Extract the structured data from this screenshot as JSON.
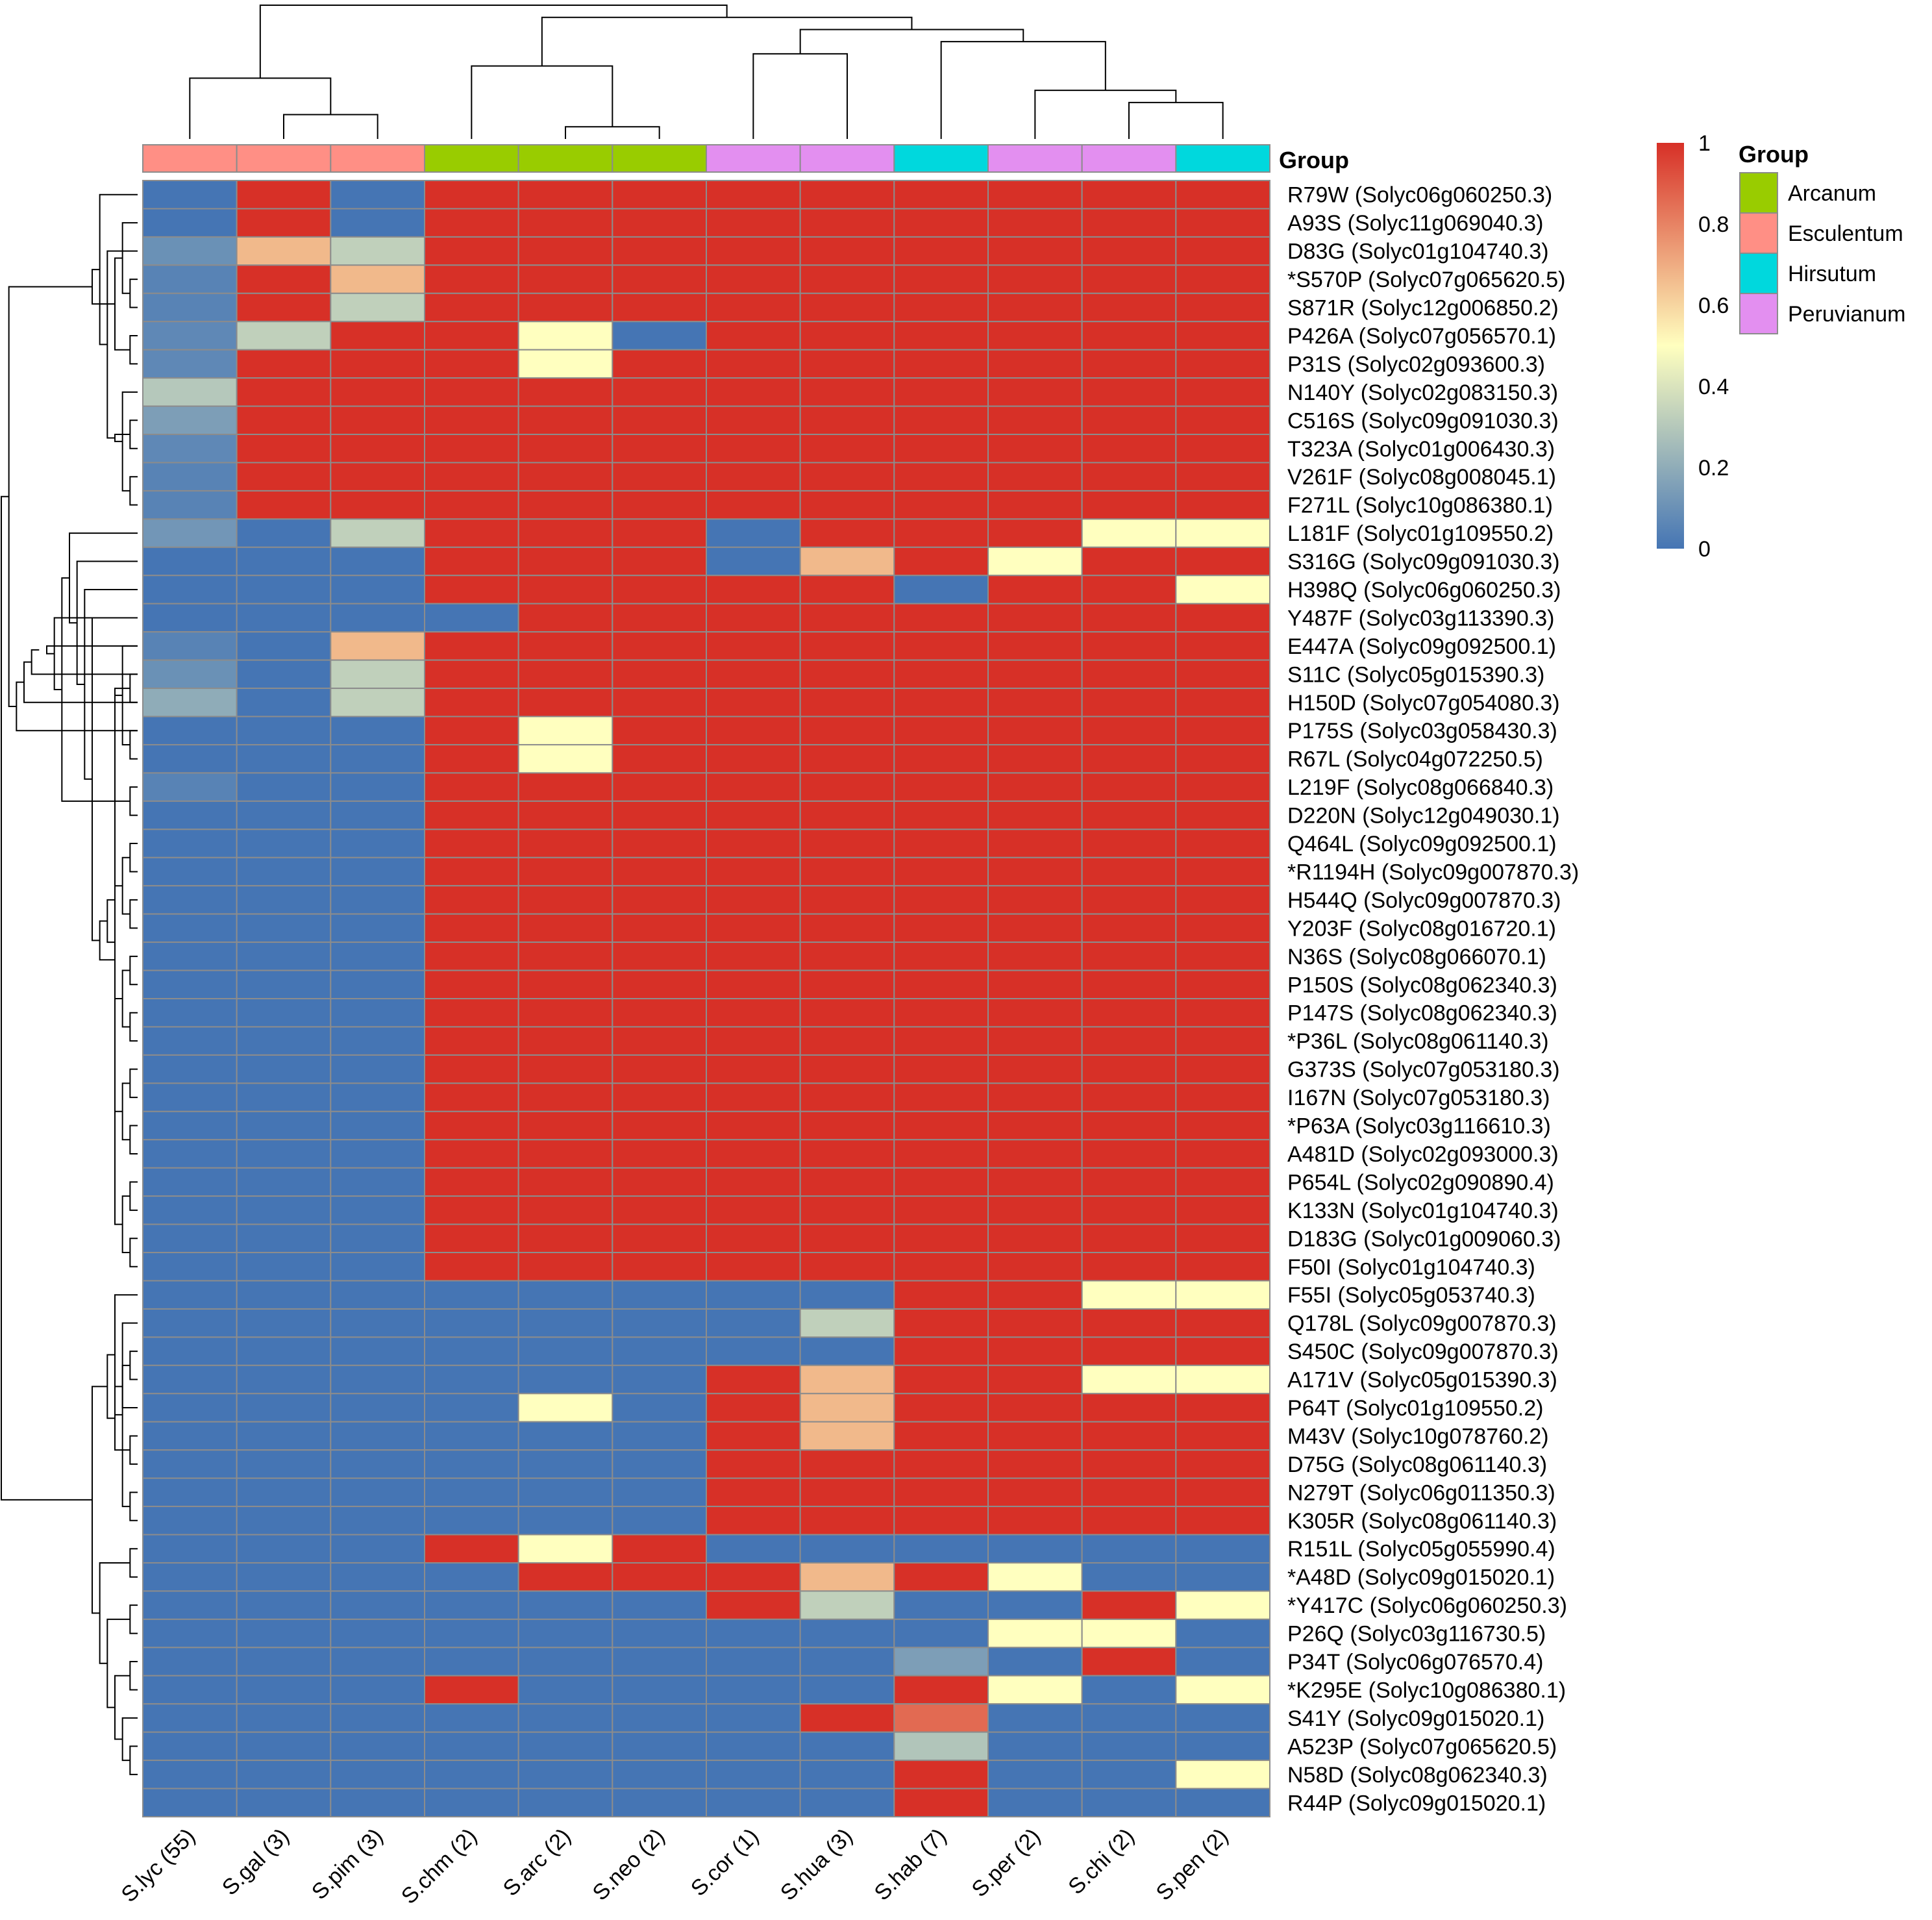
{
  "chart_data": {
    "type": "heatmap",
    "title": "",
    "columns": [
      "S.lyc (55)",
      "S.gal (3)",
      "S.pim (3)",
      "S.chm (2)",
      "S.arc (2)",
      "S.neo (2)",
      "S.cor (1)",
      "S.hua (3)",
      "S.hab (7)",
      "S.per (2)",
      "S.chi (2)",
      "S.pen (2)"
    ],
    "column_groups": [
      "Esculentum",
      "Esculentum",
      "Esculentum",
      "Arcanum",
      "Arcanum",
      "Arcanum",
      "Peruvianum",
      "Peruvianum",
      "Hirsutum",
      "Peruvianum",
      "Peruvianum",
      "Hirsutum"
    ],
    "rows": [
      "R79W (Solyc06g060250.3)",
      "A93S (Solyc11g069040.3)",
      "D83G (Solyc01g104740.3)",
      "*S570P (Solyc07g065620.5)",
      "S871R (Solyc12g006850.2)",
      "P426A (Solyc07g056570.1)",
      "P31S (Solyc02g093600.3)",
      "N140Y (Solyc02g083150.3)",
      "C516S (Solyc09g091030.3)",
      "T323A (Solyc01g006430.3)",
      "V261F (Solyc08g008045.1)",
      "F271L (Solyc10g086380.1)",
      "L181F (Solyc01g109550.2)",
      "S316G (Solyc09g091030.3)",
      "H398Q (Solyc06g060250.3)",
      "Y487F (Solyc03g113390.3)",
      "E447A (Solyc09g092500.1)",
      "S11C (Solyc05g015390.3)",
      "H150D (Solyc07g054080.3)",
      "P175S (Solyc03g058430.3)",
      "R67L (Solyc04g072250.5)",
      "L219F (Solyc08g066840.3)",
      "D220N (Solyc12g049030.1)",
      "Q464L (Solyc09g092500.1)",
      "*R1194H (Solyc09g007870.3)",
      "H544Q (Solyc09g007870.3)",
      "Y203F (Solyc08g016720.1)",
      "N36S (Solyc08g066070.1)",
      "P150S (Solyc08g062340.3)",
      "P147S (Solyc08g062340.3)",
      "*P36L (Solyc08g061140.3)",
      "G373S (Solyc07g053180.3)",
      "I167N (Solyc07g053180.3)",
      "*P63A (Solyc03g116610.3)",
      "A481D (Solyc02g093000.3)",
      "P654L (Solyc02g090890.4)",
      "K133N (Solyc01g104740.3)",
      "D183G (Solyc01g009060.3)",
      "F50I (Solyc01g104740.3)",
      "F55I (Solyc05g053740.3)",
      "Q178L (Solyc09g007870.3)",
      "S450C (Solyc09g007870.3)",
      "A171V (Solyc05g015390.3)",
      "P64T (Solyc01g109550.2)",
      "M43V (Solyc10g078760.2)",
      "D75G (Solyc08g061140.3)",
      "N279T (Solyc06g011350.3)",
      "K305R (Solyc08g061140.3)",
      "R151L (Solyc05g055990.4)",
      "*A48D (Solyc09g015020.1)",
      "*Y417C (Solyc06g060250.3)",
      "P26Q (Solyc03g116730.5)",
      "P34T (Solyc06g076570.4)",
      "*K295E (Solyc10g086380.1)",
      "S41Y (Solyc09g015020.1)",
      "A523P (Solyc07g065620.5)",
      "N58D (Solyc08g062340.3)",
      "R44P (Solyc09g015020.1)"
    ],
    "values": [
      [
        0,
        1,
        0,
        1,
        1,
        1,
        1,
        1,
        1,
        1,
        1,
        1
      ],
      [
        0,
        1,
        0,
        1,
        1,
        1,
        1,
        1,
        1,
        1,
        1,
        1
      ],
      [
        0.1,
        0.67,
        0.33,
        1,
        1,
        1,
        1,
        1,
        1,
        1,
        1,
        1
      ],
      [
        0.05,
        1,
        0.67,
        1,
        1,
        1,
        1,
        1,
        1,
        1,
        1,
        1
      ],
      [
        0.05,
        1,
        0.33,
        1,
        1,
        1,
        1,
        1,
        1,
        1,
        1,
        1
      ],
      [
        0.07,
        0.33,
        1,
        1,
        0.5,
        0,
        1,
        1,
        1,
        1,
        1,
        1
      ],
      [
        0.07,
        1,
        1,
        1,
        0.5,
        1,
        1,
        1,
        1,
        1,
        1,
        1
      ],
      [
        0.3,
        1,
        1,
        1,
        1,
        1,
        1,
        1,
        1,
        1,
        1,
        1
      ],
      [
        0.15,
        1,
        1,
        1,
        1,
        1,
        1,
        1,
        1,
        1,
        1,
        1
      ],
      [
        0.07,
        1,
        1,
        1,
        1,
        1,
        1,
        1,
        1,
        1,
        1,
        1
      ],
      [
        0.05,
        1,
        1,
        1,
        1,
        1,
        1,
        1,
        1,
        1,
        1,
        1
      ],
      [
        0.05,
        1,
        1,
        1,
        1,
        1,
        1,
        1,
        1,
        1,
        1,
        1
      ],
      [
        0.12,
        0,
        0.33,
        1,
        1,
        1,
        0,
        1,
        1,
        1,
        0.5,
        0.5
      ],
      [
        0,
        0,
        0,
        1,
        1,
        1,
        0,
        0.67,
        1,
        0.5,
        1,
        1
      ],
      [
        0,
        0,
        0,
        1,
        1,
        1,
        1,
        1,
        0,
        1,
        1,
        0.5
      ],
      [
        0,
        0,
        0,
        0,
        1,
        1,
        1,
        1,
        1,
        1,
        1,
        1
      ],
      [
        0.05,
        0,
        0.67,
        1,
        1,
        1,
        1,
        1,
        1,
        1,
        1,
        1
      ],
      [
        0.1,
        0,
        0.33,
        1,
        1,
        1,
        1,
        1,
        1,
        1,
        1,
        1
      ],
      [
        0.2,
        0,
        0.33,
        1,
        1,
        1,
        1,
        1,
        1,
        1,
        1,
        1
      ],
      [
        0,
        0,
        0,
        1,
        0.5,
        1,
        1,
        1,
        1,
        1,
        1,
        1
      ],
      [
        0,
        0,
        0,
        1,
        0.5,
        1,
        1,
        1,
        1,
        1,
        1,
        1
      ],
      [
        0.05,
        0,
        0,
        1,
        1,
        1,
        1,
        1,
        1,
        1,
        1,
        1
      ],
      [
        0,
        0,
        0,
        1,
        1,
        1,
        1,
        1,
        1,
        1,
        1,
        1
      ],
      [
        0,
        0,
        0,
        1,
        1,
        1,
        1,
        1,
        1,
        1,
        1,
        1
      ],
      [
        0,
        0,
        0,
        1,
        1,
        1,
        1,
        1,
        1,
        1,
        1,
        1
      ],
      [
        0,
        0,
        0,
        1,
        1,
        1,
        1,
        1,
        1,
        1,
        1,
        1
      ],
      [
        0,
        0,
        0,
        1,
        1,
        1,
        1,
        1,
        1,
        1,
        1,
        1
      ],
      [
        0,
        0,
        0,
        1,
        1,
        1,
        1,
        1,
        1,
        1,
        1,
        1
      ],
      [
        0,
        0,
        0,
        1,
        1,
        1,
        1,
        1,
        1,
        1,
        1,
        1
      ],
      [
        0,
        0,
        0,
        1,
        1,
        1,
        1,
        1,
        1,
        1,
        1,
        1
      ],
      [
        0,
        0,
        0,
        1,
        1,
        1,
        1,
        1,
        1,
        1,
        1,
        1
      ],
      [
        0,
        0,
        0,
        1,
        1,
        1,
        1,
        1,
        1,
        1,
        1,
        1
      ],
      [
        0,
        0,
        0,
        1,
        1,
        1,
        1,
        1,
        1,
        1,
        1,
        1
      ],
      [
        0,
        0,
        0,
        1,
        1,
        1,
        1,
        1,
        1,
        1,
        1,
        1
      ],
      [
        0,
        0,
        0,
        1,
        1,
        1,
        1,
        1,
        1,
        1,
        1,
        1
      ],
      [
        0,
        0,
        0,
        1,
        1,
        1,
        1,
        1,
        1,
        1,
        1,
        1
      ],
      [
        0,
        0,
        0,
        1,
        1,
        1,
        1,
        1,
        1,
        1,
        1,
        1
      ],
      [
        0,
        0,
        0,
        1,
        1,
        1,
        1,
        1,
        1,
        1,
        1,
        1
      ],
      [
        0,
        0,
        0,
        1,
        1,
        1,
        1,
        1,
        1,
        1,
        1,
        1
      ],
      [
        0,
        0,
        0,
        0,
        0,
        0,
        0,
        0,
        1,
        1,
        0.5,
        0.5
      ],
      [
        0,
        0,
        0,
        0,
        0,
        0,
        0,
        0.33,
        1,
        1,
        1,
        1
      ],
      [
        0,
        0,
        0,
        0,
        0,
        0,
        0,
        0,
        1,
        1,
        1,
        1
      ],
      [
        0,
        0,
        0,
        0,
        0,
        0,
        1,
        0.67,
        1,
        1,
        0.5,
        0.5
      ],
      [
        0,
        0,
        0,
        0,
        0.5,
        0,
        1,
        0.67,
        1,
        1,
        1,
        1
      ],
      [
        0,
        0,
        0,
        0,
        0,
        0,
        1,
        0.67,
        1,
        1,
        1,
        1
      ],
      [
        0,
        0,
        0,
        0,
        0,
        0,
        1,
        1,
        1,
        1,
        1,
        1
      ],
      [
        0,
        0,
        0,
        0,
        0,
        0,
        1,
        1,
        1,
        1,
        1,
        1
      ],
      [
        0,
        0,
        0,
        0,
        0,
        0,
        1,
        1,
        1,
        1,
        1,
        1
      ],
      [
        0,
        0,
        0,
        1,
        0.5,
        1,
        0,
        0,
        0,
        0,
        0,
        0
      ],
      [
        0,
        0,
        0,
        0,
        1,
        1,
        1,
        0.67,
        1,
        0.5,
        0,
        0
      ],
      [
        0,
        0,
        0,
        0,
        0,
        0,
        1,
        0.33,
        0,
        0,
        1,
        0.5
      ],
      [
        0,
        0,
        0,
        0,
        0,
        0,
        0,
        0,
        0,
        0.5,
        0.5,
        0
      ],
      [
        0,
        0,
        0,
        0,
        0,
        0,
        0,
        0,
        0.15,
        0,
        1,
        0
      ],
      [
        0,
        0,
        0,
        1,
        0,
        0,
        0,
        0,
        1,
        0.5,
        0,
        0.5
      ],
      [
        0,
        0,
        0,
        0,
        0,
        0,
        0,
        1,
        0.86,
        0,
        0,
        0
      ],
      [
        0,
        0,
        0,
        0,
        0,
        0,
        0,
        0,
        0.29,
        0,
        0,
        0
      ],
      [
        0,
        0,
        0,
        0,
        0,
        0,
        0,
        0,
        1,
        0,
        0,
        0.5
      ],
      [
        0,
        0,
        0,
        0,
        0,
        0,
        0,
        0,
        1,
        0,
        0,
        0
      ]
    ],
    "color_scale": {
      "min": 0,
      "max": 1,
      "stops": [
        {
          "value": 0,
          "color": "#4575b4"
        },
        {
          "value": 0.5,
          "color": "#ffffbf"
        },
        {
          "value": 1,
          "color": "#d73027"
        }
      ],
      "ticks": [
        "0",
        "0.2",
        "0.4",
        "0.6",
        "0.8",
        "1"
      ]
    },
    "annotation": {
      "title": "Group",
      "entries": [
        {
          "name": "Arcanum",
          "color": "#99cc00"
        },
        {
          "name": "Esculentum",
          "color": "#ff8f85"
        },
        {
          "name": "Hirsutum",
          "color": "#00d8dd"
        },
        {
          "name": "Peruvianum",
          "color": "#e38ff0"
        }
      ]
    },
    "column_dendrogram": [
      [
        4,
        5
      ],
      [
        1,
        2
      ],
      [
        10,
        11
      ],
      [
        9,
        -3
      ],
      [
        0,
        -2
      ],
      [
        3,
        -1
      ],
      [
        6,
        7
      ],
      [
        8,
        -4
      ],
      [
        -7,
        -8
      ],
      [
        -6,
        -9
      ],
      [
        -5,
        -10
      ]
    ],
    "row_dendrogram": [
      [
        3,
        4
      ],
      [
        8,
        9
      ],
      [
        10,
        11
      ],
      [
        -3,
        7
      ],
      [
        -4,
        -2
      ],
      [
        5,
        6
      ],
      [
        2,
        -5
      ],
      [
        -1,
        1
      ],
      [
        -8,
        -6
      ],
      [
        0,
        -7
      ],
      [
        -10,
        -9
      ],
      [
        21,
        22
      ],
      [
        23,
        24
      ],
      [
        25,
        26
      ],
      [
        27,
        28
      ],
      [
        29,
        30
      ],
      [
        31,
        32
      ],
      [
        33,
        34
      ],
      [
        35,
        36
      ],
      [
        37,
        38
      ],
      [
        -13,
        -14
      ],
      [
        -15,
        -16
      ],
      [
        -17,
        -18
      ],
      [
        -19,
        -20
      ],
      [
        -21,
        -22
      ],
      [
        19,
        20
      ],
      [
        17,
        18
      ],
      [
        -26,
        16
      ],
      [
        -27,
        -23
      ],
      [
        -28,
        -24
      ],
      [
        -29,
        -25
      ],
      [
        -30,
        -31
      ],
      [
        -32,
        15
      ],
      [
        14,
        -33
      ],
      [
        -34,
        13
      ],
      [
        -35,
        12
      ],
      [
        -12,
        -36
      ],
      [
        -37,
        15
      ],
      [
        -38,
        16
      ],
      [
        -39,
        -39
      ],
      [
        -40,
        17
      ],
      [
        -41,
        18
      ],
      [
        -42,
        19
      ],
      [
        -43,
        -11
      ],
      [
        41,
        42
      ],
      [
        44,
        45
      ],
      [
        46,
        47
      ],
      [
        43,
        -45
      ],
      [
        -48,
        -46
      ],
      [
        40,
        -47
      ],
      [
        39,
        -50
      ],
      [
        -51,
        -49
      ],
      [
        55,
        56
      ],
      [
        52,
        53
      ],
      [
        -53,
        54
      ],
      [
        -54,
        -55
      ],
      [
        50,
        51
      ],
      [
        -57,
        -56
      ],
      [
        48,
        49
      ],
      [
        -58,
        -59
      ],
      [
        -52,
        -60
      ],
      [
        -61,
        -44
      ]
    ]
  }
}
